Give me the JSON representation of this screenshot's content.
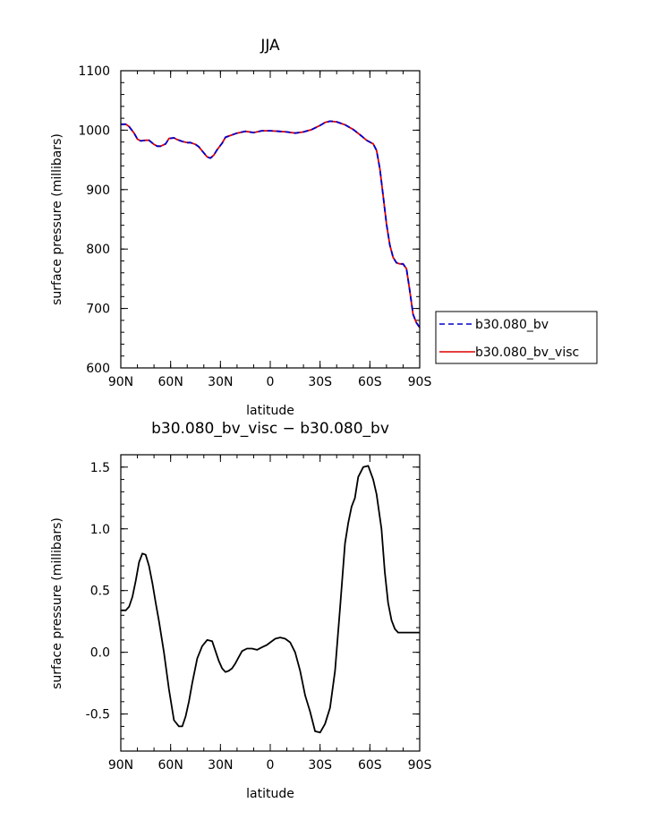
{
  "chart_data": [
    {
      "type": "line",
      "title": "JJA",
      "xlabel": "latitude",
      "ylabel": "surface pressure (millibars)",
      "xlim": [
        -90,
        90
      ],
      "ylim": [
        600,
        1100
      ],
      "x_tick_values": [
        -90,
        -60,
        -30,
        0,
        30,
        60,
        90
      ],
      "x_tick_labels": [
        "90N",
        "60N",
        "30N",
        "0",
        "30S",
        "60S",
        "90S"
      ],
      "y_tick_values": [
        600,
        700,
        800,
        900,
        1000,
        1100
      ],
      "y_tick_labels": [
        "600",
        "700",
        "800",
        "900",
        "1000",
        "1100"
      ],
      "grid": false,
      "legend_position": "right",
      "series": [
        {
          "name": "b30.080_bv",
          "color": "#0000cc",
          "style": "dashed",
          "x": [
            -90,
            -87,
            -85,
            -82,
            -80,
            -78,
            -75,
            -73,
            -70,
            -68,
            -66,
            -63,
            -61,
            -58,
            -56,
            -53,
            -50,
            -48,
            -45,
            -43,
            -41,
            -38,
            -36,
            -34,
            -32,
            -29,
            -27,
            -25,
            -20,
            -15,
            -10,
            -5,
            0,
            5,
            10,
            15,
            20,
            25,
            30,
            33,
            36,
            40,
            45,
            50,
            55,
            58,
            62,
            64,
            66,
            68,
            70,
            72,
            74,
            76,
            78,
            80,
            82,
            84,
            86,
            88,
            90
          ],
          "y": [
            1010,
            1010,
            1006,
            995,
            985,
            982,
            983,
            983,
            976,
            973,
            973,
            977,
            986,
            987,
            984,
            981,
            979,
            979,
            976,
            972,
            965,
            955,
            953,
            958,
            967,
            978,
            988,
            990,
            995,
            998,
            996,
            999,
            999,
            998,
            997,
            995,
            997,
            1001,
            1008,
            1013,
            1015,
            1014,
            1009,
            1001,
            990,
            983,
            977,
            966,
            935,
            889,
            842,
            807,
            786,
            777,
            775,
            775,
            767,
            730,
            690,
            676,
            668
          ]
        },
        {
          "name": "b30.080_bv_visc",
          "color": "#dd0000",
          "style": "solid",
          "x": [
            -90,
            -87,
            -85,
            -82,
            -80,
            -78,
            -75,
            -73,
            -70,
            -68,
            -66,
            -63,
            -61,
            -58,
            -56,
            -53,
            -50,
            -48,
            -45,
            -43,
            -41,
            -38,
            -36,
            -34,
            -32,
            -29,
            -27,
            -25,
            -20,
            -15,
            -10,
            -5,
            0,
            5,
            10,
            15,
            20,
            25,
            30,
            33,
            36,
            40,
            45,
            50,
            55,
            58,
            62,
            64,
            66,
            68,
            70,
            72,
            74,
            76,
            78,
            80,
            82,
            84,
            86,
            88,
            90
          ],
          "y": [
            1010,
            1010,
            1006,
            995,
            985,
            982,
            983,
            983,
            976,
            973,
            973,
            977,
            986,
            987,
            984,
            981,
            979,
            979,
            976,
            972,
            965,
            955,
            953,
            958,
            967,
            978,
            988,
            990,
            995,
            998,
            996,
            999,
            999,
            998,
            997,
            995,
            997,
            1001,
            1008,
            1013,
            1015,
            1014,
            1009,
            1001,
            990,
            983,
            977,
            966,
            935,
            889,
            842,
            807,
            786,
            777,
            775,
            775,
            767,
            730,
            690,
            676,
            668
          ]
        }
      ]
    },
    {
      "type": "line",
      "title": "b30.080_bv_visc − b30.080_bv",
      "xlabel": "latitude",
      "ylabel": "surface pressure (millibars)",
      "xlim": [
        -90,
        90
      ],
      "ylim": [
        -0.8,
        1.6
      ],
      "x_tick_values": [
        -90,
        -60,
        -30,
        0,
        30,
        60,
        90
      ],
      "x_tick_labels": [
        "90N",
        "60N",
        "30N",
        "0",
        "30S",
        "60S",
        "90S"
      ],
      "y_tick_values": [
        -0.5,
        0.0,
        0.5,
        1.0,
        1.5
      ],
      "y_tick_labels": [
        "-0.5",
        "0.0",
        "0.5",
        "1.0",
        "1.5"
      ],
      "grid": false,
      "series": [
        {
          "color": "#000000",
          "style": "solid",
          "x": [
            -90,
            -87,
            -85,
            -83,
            -81,
            -79,
            -77,
            -75,
            -73,
            -71,
            -69,
            -67,
            -64,
            -61,
            -58,
            -55,
            -53,
            -51,
            -49,
            -47,
            -44,
            -41,
            -38,
            -35,
            -33,
            -31,
            -29,
            -27,
            -25,
            -23,
            -21,
            -19,
            -17,
            -14,
            -11,
            -8,
            -5,
            -2,
            0,
            3,
            6,
            9,
            12,
            15,
            18,
            21,
            24,
            27,
            30,
            33,
            36,
            39,
            42,
            45,
            47,
            49,
            51,
            53,
            56,
            59,
            62,
            64,
            67,
            69,
            71,
            73,
            75,
            77,
            79,
            81,
            83,
            85,
            87,
            90
          ],
          "y": [
            0.34,
            0.34,
            0.37,
            0.45,
            0.58,
            0.73,
            0.8,
            0.79,
            0.7,
            0.56,
            0.4,
            0.25,
            0.0,
            -0.3,
            -0.55,
            -0.6,
            -0.6,
            -0.52,
            -0.4,
            -0.25,
            -0.05,
            0.05,
            0.1,
            0.09,
            0.01,
            -0.07,
            -0.13,
            -0.16,
            -0.15,
            -0.13,
            -0.09,
            -0.04,
            0.01,
            0.03,
            0.03,
            0.02,
            0.04,
            0.06,
            0.08,
            0.11,
            0.12,
            0.11,
            0.08,
            0.0,
            -0.15,
            -0.35,
            -0.48,
            -0.64,
            -0.65,
            -0.58,
            -0.45,
            -0.15,
            0.35,
            0.88,
            1.05,
            1.18,
            1.25,
            1.42,
            1.5,
            1.51,
            1.4,
            1.28,
            1.0,
            0.65,
            0.4,
            0.26,
            0.19,
            0.16,
            0.16,
            0.16,
            0.16,
            0.16,
            0.16,
            0.16
          ]
        }
      ]
    }
  ]
}
